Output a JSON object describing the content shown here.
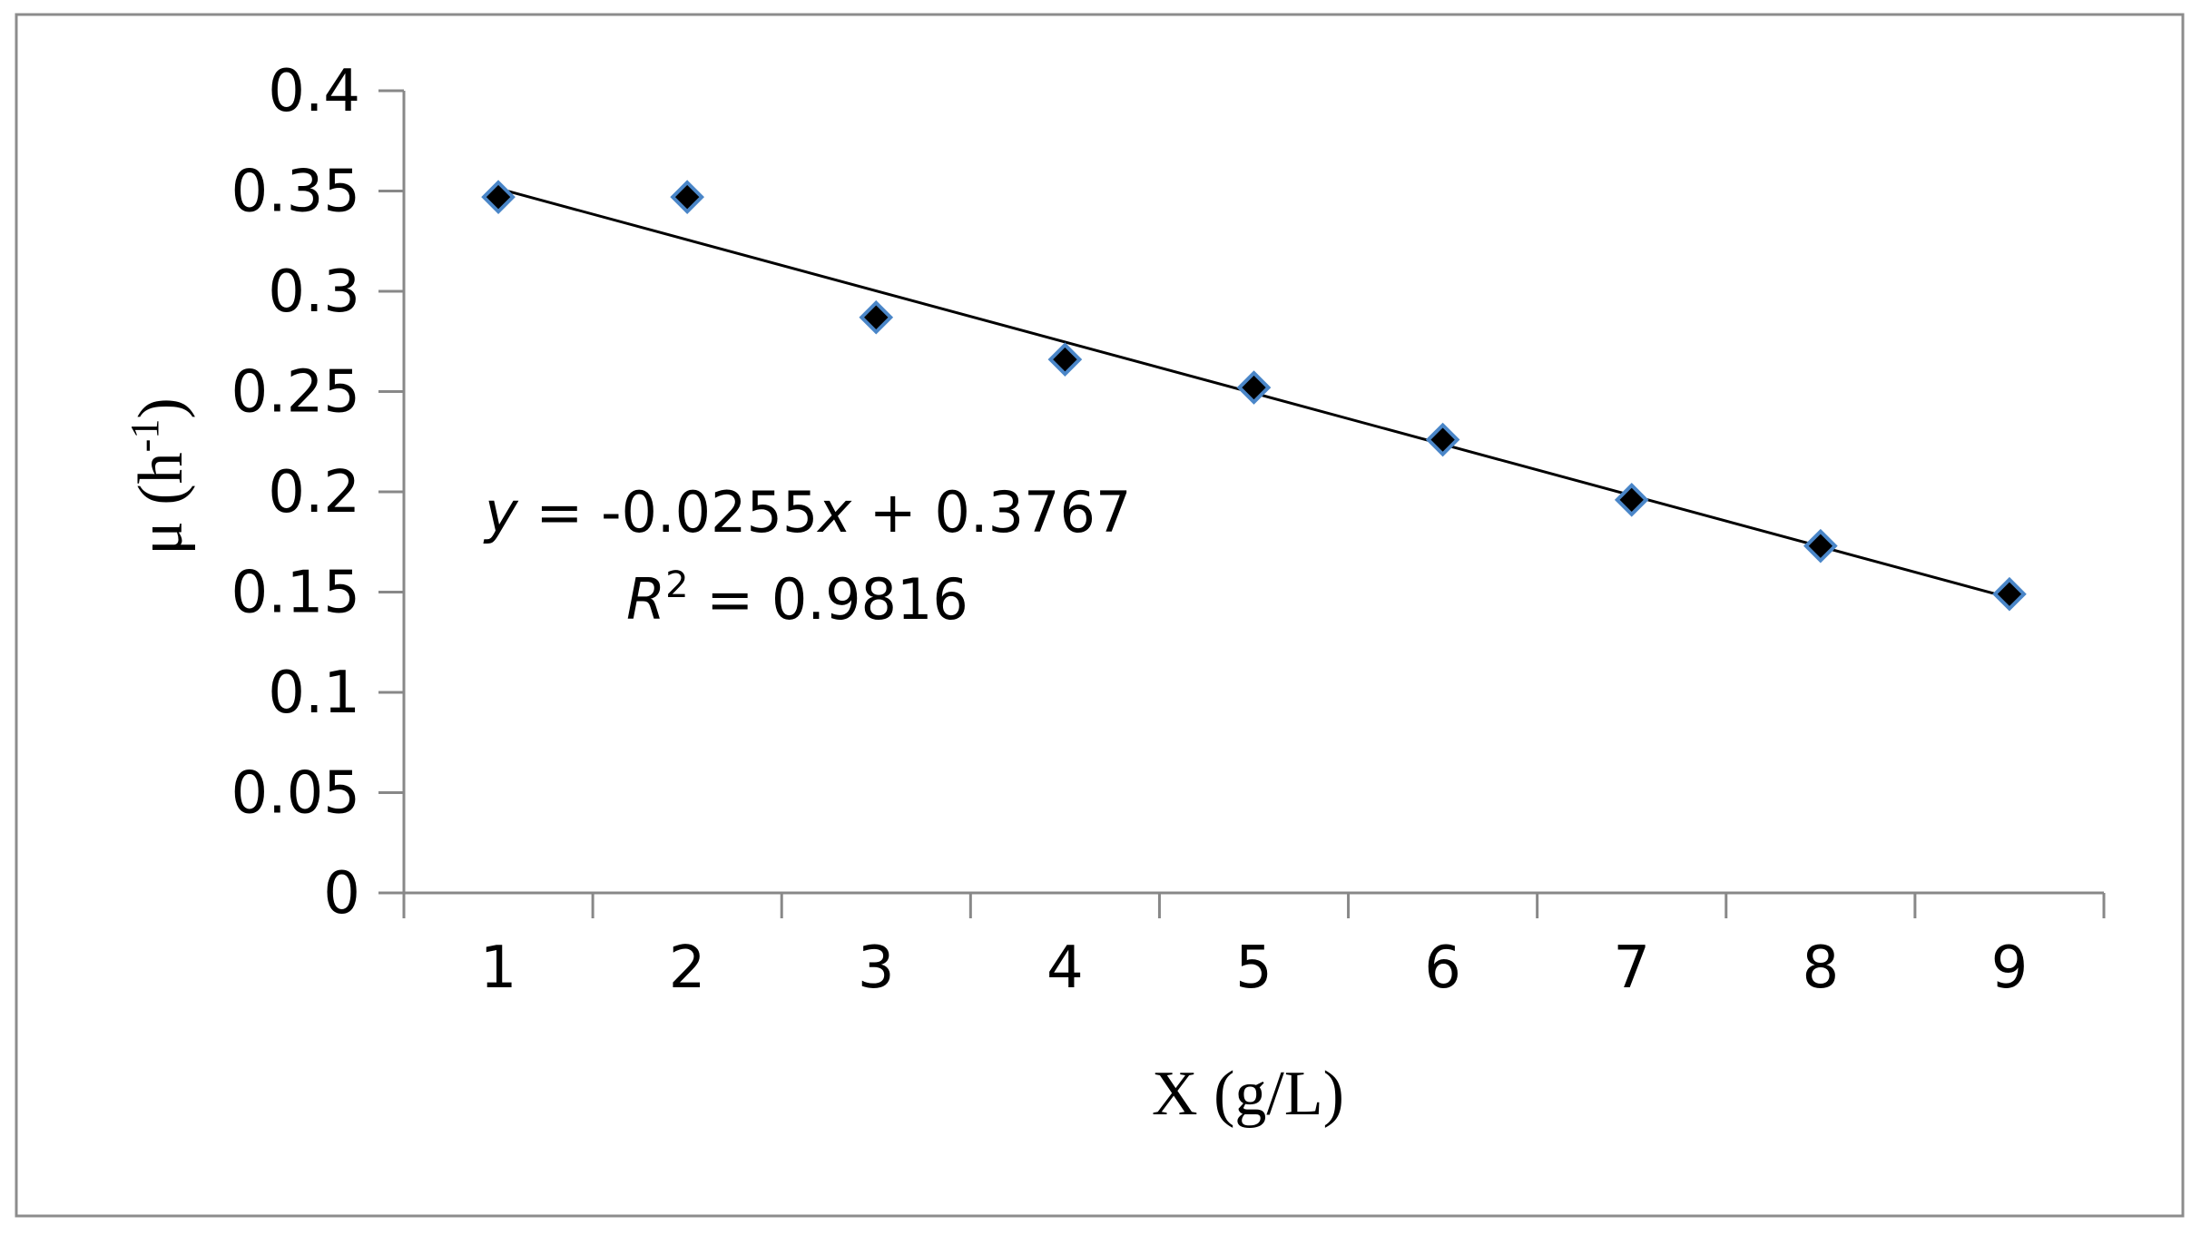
{
  "chart_data": {
    "type": "scatter",
    "xlabel": "X (g/L)",
    "ylabel": "μ (h",
    "ylabel_superscript": "-1",
    "ylabel_suffix": ")",
    "xlim": [
      0.5,
      9.5
    ],
    "ylim": [
      0,
      0.4
    ],
    "x_ticks": [
      1,
      2,
      3,
      4,
      5,
      6,
      7,
      8,
      9
    ],
    "x_tick_labels": [
      "1",
      "2",
      "3",
      "4",
      "5",
      "6",
      "7",
      "8",
      "9"
    ],
    "y_ticks": [
      0,
      0.05,
      0.1,
      0.15,
      0.2,
      0.25,
      0.3,
      0.35,
      0.4
    ],
    "y_tick_labels": [
      "0",
      "0.05",
      "0.1",
      "0.15",
      "0.2",
      "0.25",
      "0.3",
      "0.35",
      "0.4"
    ],
    "grid": false,
    "series": [
      {
        "marker": "diamond",
        "fill_color": "#000000",
        "edge_color": "#4a86c8",
        "points": [
          {
            "x": 1,
            "y": 0.347
          },
          {
            "x": 2,
            "y": 0.347
          },
          {
            "x": 3,
            "y": 0.287
          },
          {
            "x": 4,
            "y": 0.266
          },
          {
            "x": 5,
            "y": 0.252
          },
          {
            "x": 6,
            "y": 0.226
          },
          {
            "x": 7,
            "y": 0.196
          },
          {
            "x": 8,
            "y": 0.173
          },
          {
            "x": 9,
            "y": 0.149
          }
        ]
      }
    ],
    "trendline": {
      "type": "linear",
      "slope": -0.0255,
      "intercept": 0.3767,
      "x_range": [
        1,
        9
      ],
      "color": "#000000",
      "equation_label": {
        "y_var": "y",
        "eq_mid": " = -0.0255",
        "x_var": "x",
        "eq_end": " + 0.3767",
        "r_var": "R",
        "r_sup": "2",
        "r_value": " = 0.9816"
      }
    }
  }
}
